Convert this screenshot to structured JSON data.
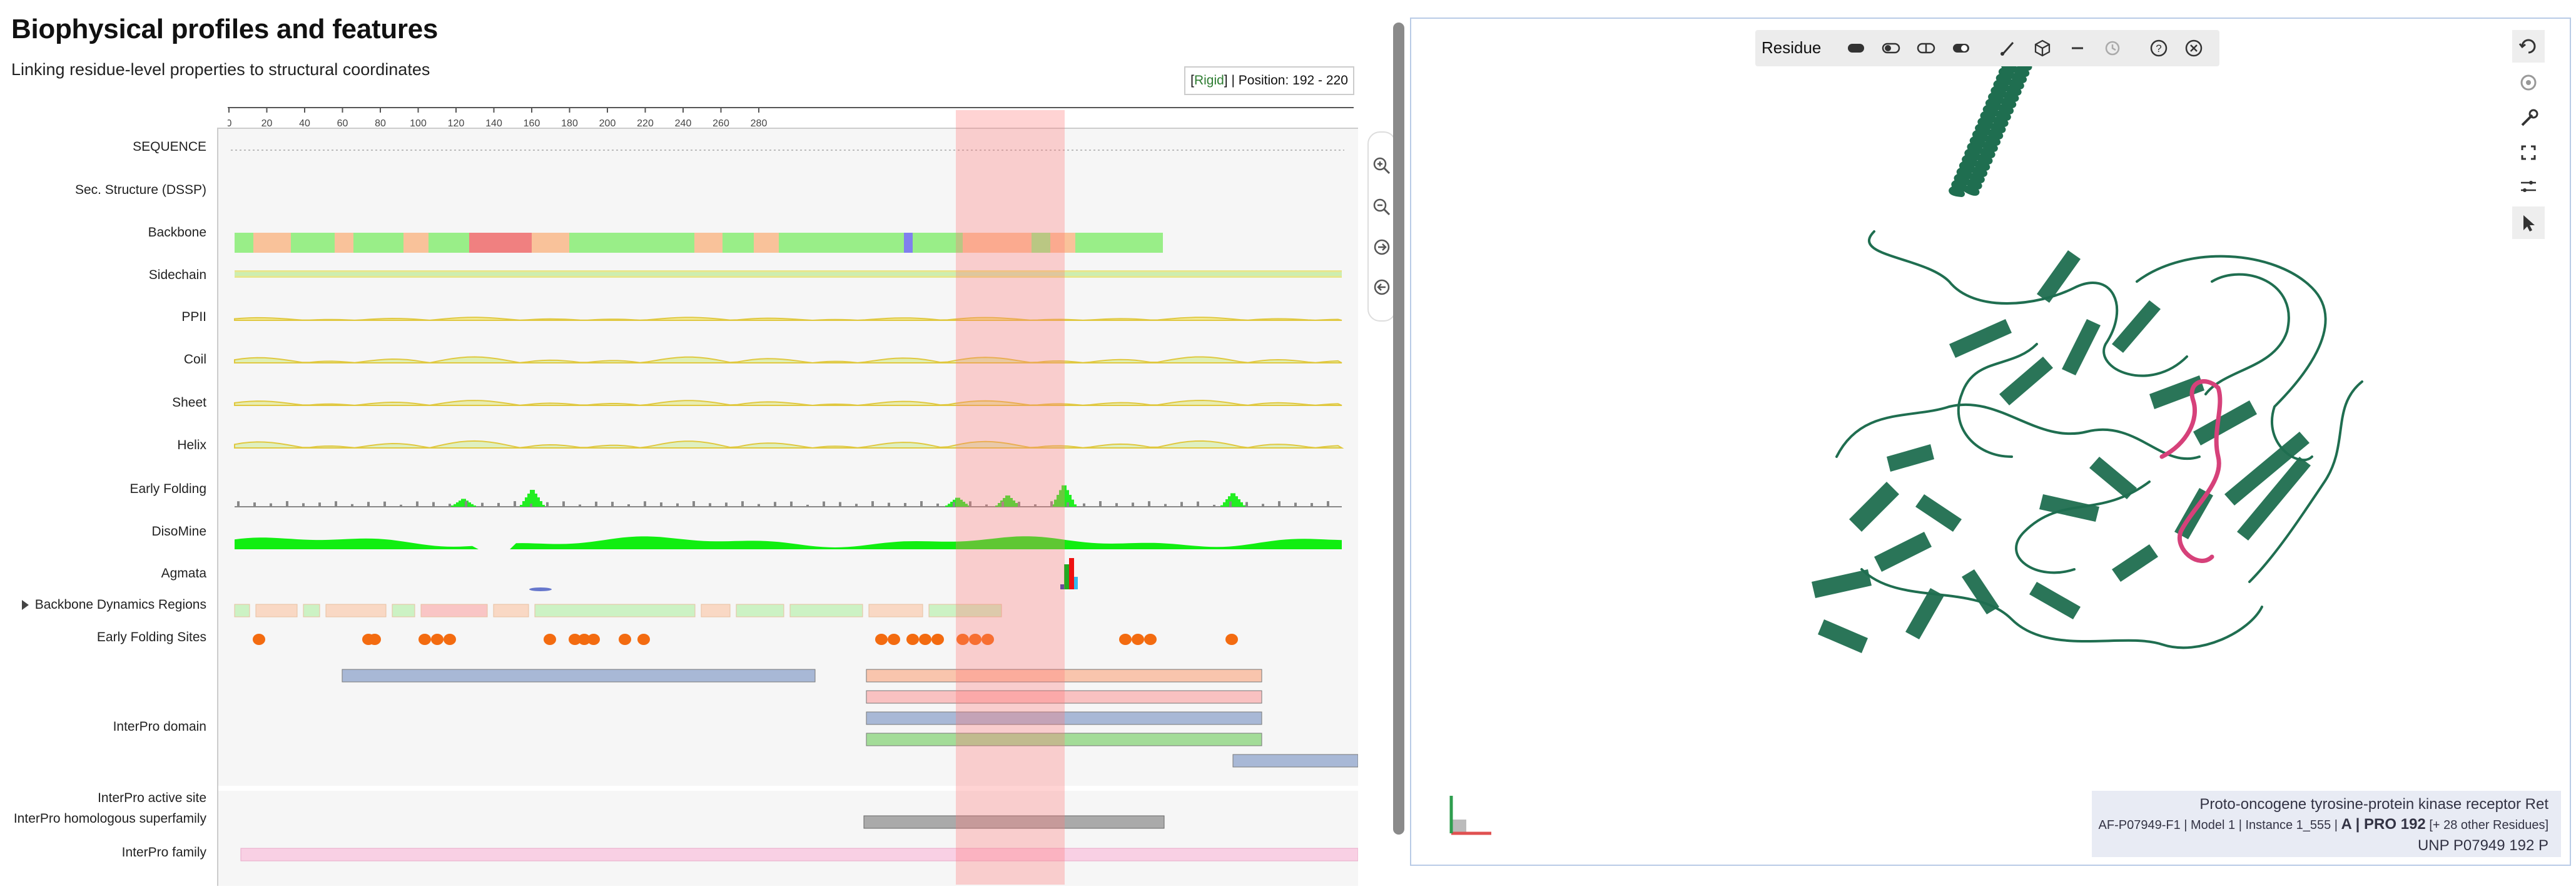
{
  "header": {
    "title": "Biophysical profiles and features",
    "subtitle": "Linking residue-level properties to structural coordinates"
  },
  "position_box": {
    "mode": "Rigid",
    "position_text": "Position: 192 - 220"
  },
  "axis": {
    "ticks": [
      "0",
      "20",
      "40",
      "60",
      "80",
      "100",
      "120",
      "140",
      "160",
      "180",
      "200",
      "220",
      "240",
      "260",
      "280"
    ]
  },
  "tracks": {
    "labels": [
      "SEQUENCE",
      "Sec. Structure (DSSP)",
      "Backbone",
      "Sidechain",
      "PPII",
      "Coil",
      "Sheet",
      "Helix",
      "Early Folding",
      "DisoMine",
      "Agmata",
      "Backbone Dynamics Regions",
      "Early Folding Sites",
      "InterPro domain",
      "InterPro active site",
      "InterPro homologous superfamily",
      "InterPro family"
    ]
  },
  "colors": {
    "highlight": "#ff7878",
    "green": "#7cfc00",
    "orange": "#f36b10",
    "steel": "#a8b8d6",
    "salmon": "#f9c5ad",
    "protein": "#1f6e50",
    "selection": "#d6417a"
  },
  "viewer": {
    "toolbar_label": "Residue",
    "toolbar_icons": [
      "toggle-dark-icon",
      "toggle-half-icon",
      "toggle-split-icon",
      "toggle-full-icon",
      "brush-icon",
      "cube-icon",
      "minus-icon",
      "history-icon",
      "help-icon",
      "close-icon"
    ],
    "side_icons": [
      "reset-icon",
      "spin-icon",
      "wrench-icon",
      "fullscreen-icon",
      "sliders-icon",
      "cursor-icon"
    ],
    "info": {
      "protein_name": "Proto-oncogene tyrosine-protein kinase receptor Ret",
      "model_prefix": "AF-P07949-F1 | Model 1 | Instance 1_555 | ",
      "residue": "A | PRO 192",
      "extra": " [+ 28 other Residues]",
      "unp": "UNP P07949 192 P"
    }
  }
}
